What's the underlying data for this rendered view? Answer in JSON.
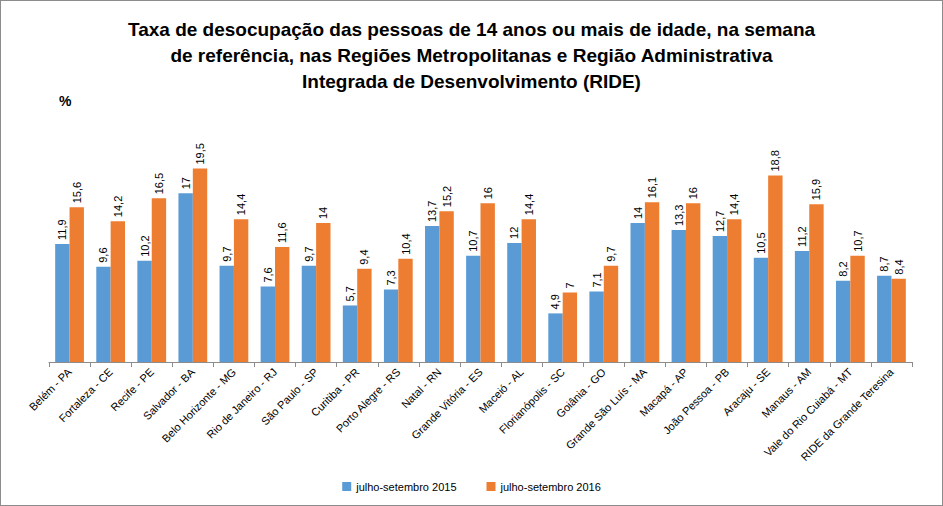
{
  "chart_data": {
    "type": "bar",
    "title": "Taxa de desocupação das pessoas de 14 anos ou mais de idade, na semana\nde referência, nas Regiões Metropolitanas e Região Administrativa\nIntegrada de Desenvolvimento (RIDE)",
    "ylabel": "%",
    "categories": [
      "Belém - PA",
      "Fortaleza - CE",
      "Recife - PE",
      "Salvador - BA",
      "Belo Horizonte - MG",
      "Rio de Janeiro - RJ",
      "São Paulo - SP",
      "Curitiba - PR",
      "Porto Alegre - RS",
      "Natal - RN",
      "Grande Vitória - ES",
      "Maceió - AL",
      "Florianópolis - SC",
      "Goiânia - GO",
      "Grande São Luís - MA",
      "Macapá - AP",
      "João Pessoa - PB",
      "Aracaju - SE",
      "Manaus - AM",
      "Vale do Rio Cuiabá - MT",
      "RIDE da Grande Teresina"
    ],
    "series": [
      {
        "name": "julho-setembro 2015",
        "color": "#5b9bd5",
        "values": [
          11.9,
          9.6,
          10.2,
          17,
          9.7,
          7.6,
          9.7,
          5.7,
          7.3,
          13.7,
          10.7,
          12,
          4.9,
          7.1,
          14,
          13.3,
          12.7,
          10.5,
          11.2,
          8.2,
          8.7
        ],
        "value_labels": [
          "11,9",
          "9,6",
          "10,2",
          "17",
          "9,7",
          "7,6",
          "9,7",
          "5,7",
          "7,3",
          "13,7",
          "10,7",
          "12",
          "4,9",
          "7,1",
          "14",
          "13,3",
          "12,7",
          "10,5",
          "11,2",
          "8,2",
          "8,7"
        ]
      },
      {
        "name": "julho-setembro 2016",
        "color": "#ed7d31",
        "values": [
          15.6,
          14.2,
          16.5,
          19.5,
          14.4,
          11.6,
          14,
          9.4,
          10.4,
          15.2,
          16,
          14.4,
          7,
          9.7,
          16.1,
          16,
          14.4,
          18.8,
          15.9,
          10.7,
          8.4
        ],
        "value_labels": [
          "15,6",
          "14,2",
          "16,5",
          "19,5",
          "14,4",
          "11,6",
          "14",
          "9,4",
          "10,4",
          "15,2",
          "16",
          "14,4",
          "7",
          "9,7",
          "16,1",
          "16",
          "14,4",
          "18,8",
          "15,9",
          "10,7",
          "8,4"
        ]
      }
    ],
    "ylim": [
      0,
      25
    ],
    "yticks": [
      0,
      5,
      10,
      15,
      20,
      25
    ],
    "grid": false,
    "legend": "bottom",
    "data_labels": true,
    "tick_labels": "x"
  }
}
